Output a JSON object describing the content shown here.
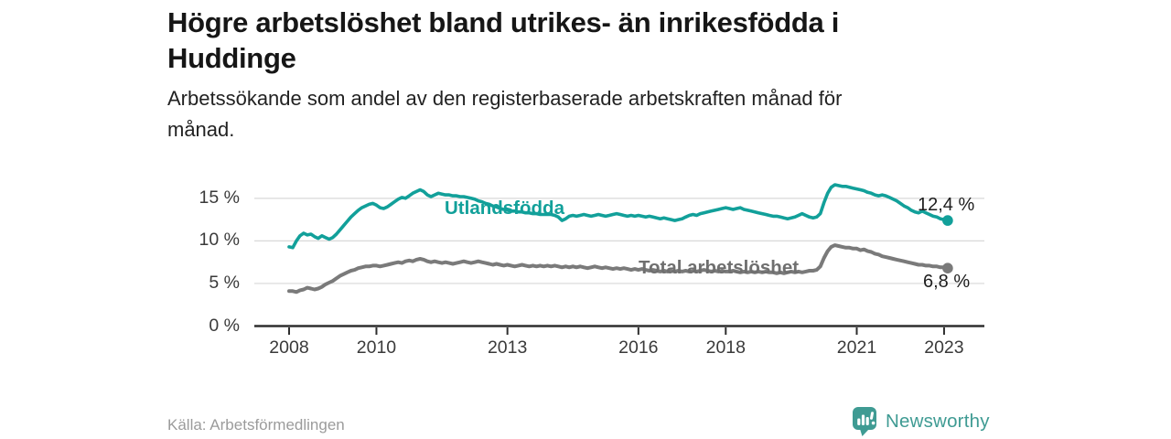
{
  "title": {
    "line1": "Högre arbetslöshet bland utrikes- än inrikesfödda i",
    "line2": "Huddinge"
  },
  "subtitle": {
    "line1": "Arbetssökande som andel av den registerbaserade arbetskraften månad för",
    "line2": "månad."
  },
  "source": "Källa: Arbetsförmedlingen",
  "branding": {
    "name": "Newsworthy",
    "logo_icon": "bar-chart-speech-bubble",
    "logo_color": "#3F9B93"
  },
  "colors": {
    "accent_teal": "#12A09A",
    "series_gray": "#7A7A7A",
    "grid": "#D8D8D8",
    "axis": "#2E2E2E",
    "text_dark": "#1D1D1D",
    "text_muted": "#9B9B9B"
  },
  "chart_data": {
    "type": "line",
    "title": "Högre arbetslöshet bland utrikes- än inrikesfödda i Huddinge",
    "subtitle": "Arbetssökande som andel av den registerbaserade arbetskraften månad för månad.",
    "grid": "horizontal",
    "legend": "inline-labels",
    "x_start": 2008.0,
    "x_step_years": 0.083333,
    "x_axis": {
      "ticks": [
        2008,
        2010,
        2013,
        2016,
        2018,
        2021,
        2023
      ],
      "labels": [
        "2008",
        "2010",
        "2013",
        "2016",
        "2018",
        "2021",
        "2023"
      ],
      "xlim": [
        2007.2,
        2023.9
      ]
    },
    "y_axis": {
      "ticks": [
        0,
        5,
        10,
        15
      ],
      "labels": [
        "0 %",
        "5 %",
        "10 %",
        "15 %"
      ],
      "ylim": [
        0,
        17.5
      ]
    },
    "series": [
      {
        "name": "Utlandsfödda",
        "color": "#12A09A",
        "end_label": "12,4 %",
        "end_value": 12.4,
        "values": [
          9.3,
          9.2,
          10.0,
          10.6,
          10.9,
          10.7,
          10.8,
          10.5,
          10.3,
          10.6,
          10.4,
          10.2,
          10.4,
          10.8,
          11.3,
          11.8,
          12.3,
          12.8,
          13.2,
          13.6,
          13.9,
          14.1,
          14.3,
          14.4,
          14.2,
          13.9,
          13.8,
          14.0,
          14.3,
          14.6,
          14.9,
          15.1,
          15.0,
          15.3,
          15.6,
          15.8,
          16.0,
          15.8,
          15.4,
          15.2,
          15.4,
          15.6,
          15.5,
          15.4,
          15.4,
          15.3,
          15.3,
          15.2,
          15.2,
          15.1,
          15.0,
          14.9,
          14.7,
          14.6,
          14.4,
          14.3,
          14.1,
          14.0,
          13.8,
          13.7,
          13.6,
          13.5,
          13.5,
          13.4,
          13.4,
          13.3,
          13.3,
          13.2,
          13.2,
          13.1,
          13.1,
          13.1,
          13.1,
          13.0,
          12.8,
          12.4,
          12.6,
          12.9,
          13.0,
          12.9,
          13.0,
          13.1,
          13.0,
          12.9,
          13.0,
          13.1,
          13.0,
          12.9,
          13.0,
          13.1,
          13.2,
          13.1,
          13.0,
          12.9,
          13.0,
          12.9,
          13.0,
          12.9,
          12.8,
          12.9,
          12.8,
          12.7,
          12.6,
          12.7,
          12.6,
          12.5,
          12.4,
          12.5,
          12.6,
          12.8,
          13.0,
          13.1,
          13.0,
          13.2,
          13.3,
          13.4,
          13.5,
          13.6,
          13.7,
          13.8,
          13.9,
          13.8,
          13.7,
          13.8,
          13.9,
          13.7,
          13.6,
          13.5,
          13.4,
          13.3,
          13.2,
          13.1,
          13.0,
          12.9,
          12.9,
          12.8,
          12.7,
          12.6,
          12.7,
          12.8,
          13.0,
          13.2,
          13.0,
          12.8,
          12.7,
          12.8,
          13.2,
          14.5,
          15.6,
          16.3,
          16.6,
          16.5,
          16.4,
          16.4,
          16.3,
          16.2,
          16.1,
          16.0,
          15.9,
          15.7,
          15.6,
          15.4,
          15.3,
          15.4,
          15.3,
          15.1,
          14.9,
          14.7,
          14.4,
          14.1,
          13.9,
          13.6,
          13.4,
          13.3,
          13.5,
          13.3,
          13.1,
          12.9,
          12.8,
          12.6,
          12.5,
          12.4
        ]
      },
      {
        "name": "Total arbetslöshet",
        "color": "#7A7A7A",
        "end_label": "6,8 %",
        "end_value": 6.8,
        "values": [
          4.1,
          4.1,
          4.0,
          4.2,
          4.3,
          4.5,
          4.4,
          4.3,
          4.4,
          4.6,
          4.9,
          5.1,
          5.3,
          5.6,
          5.9,
          6.1,
          6.3,
          6.5,
          6.6,
          6.8,
          6.9,
          7.0,
          7.0,
          7.1,
          7.1,
          7.0,
          7.1,
          7.2,
          7.3,
          7.4,
          7.5,
          7.4,
          7.6,
          7.7,
          7.6,
          7.8,
          7.9,
          7.8,
          7.6,
          7.5,
          7.6,
          7.5,
          7.4,
          7.5,
          7.4,
          7.3,
          7.4,
          7.5,
          7.6,
          7.5,
          7.4,
          7.5,
          7.6,
          7.5,
          7.4,
          7.3,
          7.2,
          7.3,
          7.2,
          7.1,
          7.2,
          7.1,
          7.0,
          7.1,
          7.2,
          7.1,
          7.0,
          7.1,
          7.0,
          7.1,
          7.0,
          7.1,
          7.0,
          7.1,
          7.0,
          6.9,
          7.0,
          6.9,
          7.0,
          6.9,
          7.0,
          6.9,
          6.8,
          6.9,
          7.0,
          6.9,
          6.8,
          6.9,
          6.8,
          6.7,
          6.8,
          6.7,
          6.8,
          6.7,
          6.6,
          6.7,
          6.6,
          6.7,
          6.6,
          6.5,
          6.6,
          6.5,
          6.4,
          6.5,
          6.4,
          6.5,
          6.4,
          6.5,
          6.4,
          6.5,
          6.4,
          6.5,
          6.4,
          6.5,
          6.6,
          6.5,
          6.4,
          6.5,
          6.4,
          6.5,
          6.4,
          6.4,
          6.5,
          6.4,
          6.3,
          6.4,
          6.3,
          6.4,
          6.3,
          6.4,
          6.3,
          6.4,
          6.3,
          6.3,
          6.2,
          6.3,
          6.2,
          6.3,
          6.4,
          6.3,
          6.4,
          6.3,
          6.4,
          6.5,
          6.5,
          6.6,
          7.0,
          8.0,
          8.8,
          9.3,
          9.5,
          9.4,
          9.3,
          9.2,
          9.2,
          9.1,
          9.1,
          8.9,
          9.0,
          8.8,
          8.7,
          8.5,
          8.4,
          8.2,
          8.1,
          8.0,
          7.9,
          7.8,
          7.7,
          7.6,
          7.5,
          7.4,
          7.3,
          7.2,
          7.2,
          7.1,
          7.1,
          7.0,
          7.0,
          6.9,
          6.9,
          6.8
        ]
      }
    ]
  }
}
